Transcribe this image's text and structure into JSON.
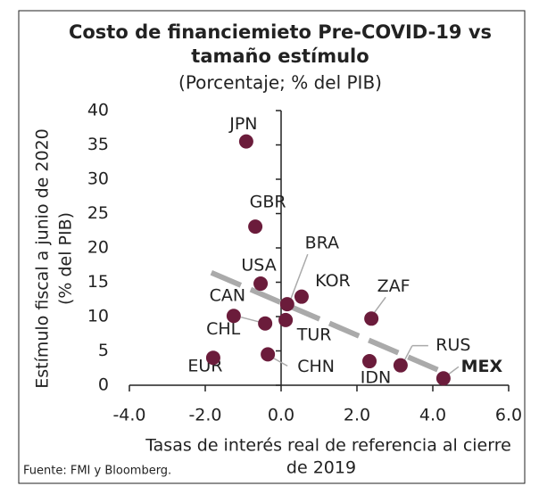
{
  "chart_data": {
    "type": "scatter",
    "title": [
      "Costo de financiemieto Pre-COVID-19 vs",
      "tamaño estímulo"
    ],
    "subtitle": "(Porcentaje; % del PIB)",
    "ylabel": [
      "Estímulo fiscal a junio de 2020",
      "(% del PIB)"
    ],
    "xlabel": [
      "Tasas de interés real de referencia al cierre",
      "de 2019"
    ],
    "source": "Fuente: FMI y Bloomberg.",
    "labels": [
      "JPN",
      "GBR",
      "USA",
      "CAN",
      "BRA",
      "KOR",
      "TUR",
      "CHL",
      "ZAF",
      "CHN",
      "EUR",
      "IDN",
      "RUS",
      "MEX"
    ],
    "x": [
      -0.92,
      -0.68,
      -0.54,
      -1.25,
      0.16,
      0.54,
      0.12,
      -0.42,
      2.38,
      -0.35,
      -1.79,
      2.33,
      3.15,
      4.28
    ],
    "y": [
      35.5,
      23.1,
      14.8,
      10.1,
      11.8,
      12.9,
      9.5,
      9.0,
      9.7,
      4.5,
      4.0,
      3.5,
      2.9,
      1.0
    ],
    "color": "#6b1c3b",
    "highlight": "MEX",
    "trendline": {
      "x": [
        -1.84,
        4.28
      ],
      "y": [
        16.4,
        1.9
      ],
      "color": "#aaaaaa"
    },
    "xlim": [
      -4,
      6
    ],
    "xticks": [
      {
        "value": -4,
        "label": "-4.0"
      },
      {
        "value": -2,
        "label": "-2.0"
      },
      {
        "value": 0,
        "label": "0.0"
      },
      {
        "value": 2,
        "label": "2.0"
      },
      {
        "value": 4,
        "label": "4.0"
      },
      {
        "value": 6,
        "label": "6.0"
      }
    ],
    "ylim": [
      0,
      40
    ],
    "yticks": [
      0,
      5,
      10,
      15,
      20,
      25,
      30,
      35,
      40
    ]
  }
}
